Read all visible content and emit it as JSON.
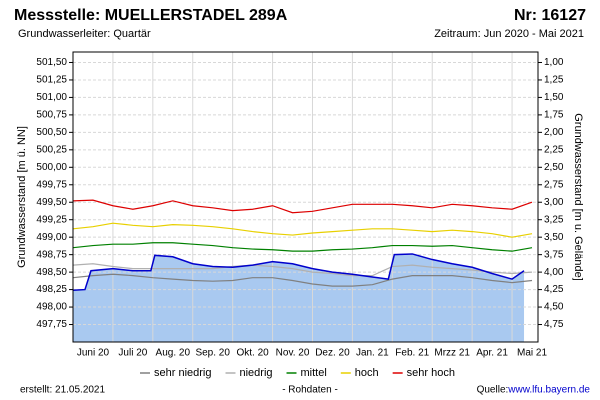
{
  "chart_data": {
    "type": "line",
    "title": "Messstelle: MUELLERSTADEL 289A",
    "number": "Nr: 16127",
    "subtitle": "Grundwasserleiter: Quartär",
    "period": "Zeitraum: Jun 2020 - Mai 2021",
    "ylabel": "Grundwasserstand [m ü. NN]",
    "y2label": "Grundwasserstand [m u. Gelände]",
    "created": "erstellt:  21.05.2021",
    "raw_label": "- Rohdaten -",
    "source_label": "Quelle: ",
    "source_link": "www.lfu.bayern.de",
    "grid": true,
    "xlim": [
      0,
      11.65
    ],
    "xticks": [
      {
        "value": 0.5,
        "label": "Juni 20"
      },
      {
        "value": 1.5,
        "label": "Juli 20"
      },
      {
        "value": 2.5,
        "label": "Aug. 20"
      },
      {
        "value": 3.5,
        "label": "Sep. 20"
      },
      {
        "value": 4.5,
        "label": "Okt. 20"
      },
      {
        "value": 5.5,
        "label": "Nov. 20"
      },
      {
        "value": 6.5,
        "label": "Dez. 20"
      },
      {
        "value": 7.5,
        "label": "Jan. 21"
      },
      {
        "value": 8.5,
        "label": "Feb. 21"
      },
      {
        "value": 9.5,
        "label": "Mrzz 21"
      },
      {
        "value": 10.5,
        "label": "Apr. 21"
      },
      {
        "value": 11.5,
        "label": "Mai 21"
      }
    ],
    "ylim": [
      497.5,
      501.65
    ],
    "yticks": [
      {
        "value": 497.75,
        "label": "497,75"
      },
      {
        "value": 498,
        "label": "498,00"
      },
      {
        "value": 498.25,
        "label": "498,25"
      },
      {
        "value": 498.5,
        "label": "498,50"
      },
      {
        "value": 498.75,
        "label": "498,75"
      },
      {
        "value": 499,
        "label": "499,00"
      },
      {
        "value": 499.25,
        "label": "499,25"
      },
      {
        "value": 499.5,
        "label": "499,50"
      },
      {
        "value": 499.75,
        "label": "499,75"
      },
      {
        "value": 500,
        "label": "500,00"
      },
      {
        "value": 500.25,
        "label": "500,25"
      },
      {
        "value": 500.5,
        "label": "500,50"
      },
      {
        "value": 500.75,
        "label": "500,75"
      },
      {
        "value": 501,
        "label": "501,00"
      },
      {
        "value": 501.25,
        "label": "501,25"
      },
      {
        "value": 501.5,
        "label": "501,50"
      }
    ],
    "y2lim": [
      5.0,
      0.85
    ],
    "y2ticks": [
      {
        "value": 4.75,
        "label": "4,75"
      },
      {
        "value": 4.5,
        "label": "4,50"
      },
      {
        "value": 4.25,
        "label": "4,25"
      },
      {
        "value": 4,
        "label": "4,00"
      },
      {
        "value": 3.75,
        "label": "3,75"
      },
      {
        "value": 3.5,
        "label": "3,50"
      },
      {
        "value": 3.25,
        "label": "3,25"
      },
      {
        "value": 3,
        "label": "3,00"
      },
      {
        "value": 2.75,
        "label": "2,75"
      },
      {
        "value": 2.5,
        "label": "2,50"
      },
      {
        "value": 2.25,
        "label": "2,25"
      },
      {
        "value": 2,
        "label": "2,00"
      },
      {
        "value": 1.75,
        "label": "1,75"
      },
      {
        "value": 1.5,
        "label": "1,50"
      },
      {
        "value": 1.25,
        "label": "1,25"
      },
      {
        "value": 1,
        "label": "1,00"
      }
    ],
    "x": [
      0,
      0.5,
      1,
      1.5,
      2,
      2.5,
      3,
      3.5,
      4,
      4.5,
      5,
      5.5,
      6,
      6.5,
      7,
      7.5,
      8,
      8.5,
      9,
      9.5,
      10,
      10.5,
      11,
      11.5
    ],
    "series": [
      {
        "name": "sehr niedrig",
        "color": "#808080",
        "values": [
          498.42,
          498.45,
          498.47,
          498.45,
          498.42,
          498.4,
          498.38,
          498.37,
          498.38,
          498.42,
          498.42,
          498.38,
          498.33,
          498.3,
          498.3,
          498.32,
          498.4,
          498.45,
          498.45,
          498.45,
          498.42,
          498.38,
          498.35,
          498.38
        ]
      },
      {
        "name": "niedrig",
        "color": "#b0b0b0",
        "values": [
          498.6,
          498.62,
          498.58,
          498.55,
          498.55,
          498.55,
          498.55,
          498.55,
          498.58,
          498.6,
          498.58,
          498.55,
          498.5,
          498.48,
          498.45,
          498.45,
          498.58,
          498.6,
          498.57,
          498.55,
          498.53,
          498.5,
          498.48,
          498.5
        ]
      },
      {
        "name": "mittel",
        "color": "#008000",
        "values": [
          498.85,
          498.88,
          498.9,
          498.9,
          498.92,
          498.92,
          498.9,
          498.88,
          498.85,
          498.83,
          498.82,
          498.8,
          498.8,
          498.82,
          498.83,
          498.85,
          498.88,
          498.88,
          498.87,
          498.88,
          498.85,
          498.82,
          498.8,
          498.85
        ]
      },
      {
        "name": "hoch",
        "color": "#e8d000",
        "values": [
          499.12,
          499.15,
          499.2,
          499.17,
          499.15,
          499.18,
          499.17,
          499.15,
          499.12,
          499.08,
          499.05,
          499.03,
          499.06,
          499.08,
          499.1,
          499.12,
          499.12,
          499.1,
          499.08,
          499.1,
          499.08,
          499.05,
          499.0,
          499.05
        ]
      },
      {
        "name": "sehr hoch",
        "color": "#dd0000",
        "values": [
          499.52,
          499.53,
          499.45,
          499.4,
          499.45,
          499.52,
          499.45,
          499.42,
          499.38,
          499.4,
          499.45,
          499.35,
          499.37,
          499.42,
          499.47,
          499.47,
          499.47,
          499.45,
          499.42,
          499.47,
          499.45,
          499.42,
          499.4,
          499.5
        ]
      }
    ],
    "raw": {
      "color": "#0000cc",
      "fill": "#a9c9f0",
      "x": [
        0,
        0.3,
        0.45,
        1,
        1.5,
        1.95,
        2.05,
        2.5,
        3,
        3.5,
        4,
        4.5,
        5,
        5.5,
        6,
        6.5,
        7,
        7.5,
        7.9,
        8.05,
        8.5,
        9,
        9.5,
        10,
        10.5,
        11,
        11.3
      ],
      "values": [
        498.24,
        498.25,
        498.52,
        498.55,
        498.52,
        498.52,
        498.74,
        498.72,
        498.62,
        498.58,
        498.57,
        498.6,
        498.65,
        498.62,
        498.55,
        498.5,
        498.47,
        498.43,
        498.4,
        498.75,
        498.76,
        498.68,
        498.62,
        498.57,
        498.48,
        498.4,
        498.52
      ]
    }
  }
}
